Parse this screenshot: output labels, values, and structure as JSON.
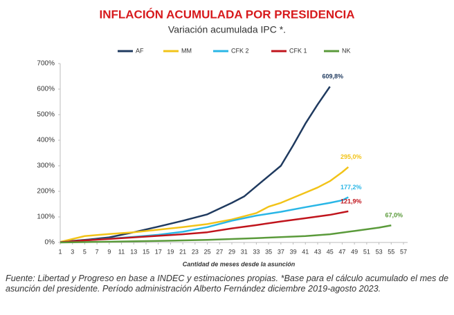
{
  "chart_data": {
    "type": "line",
    "title": "INFLACIÓN ACUMULADA POR PRESIDENCIA",
    "subtitle": "Variación acumulada IPC *.",
    "x_label": "Cantidad de meses desde la asunción",
    "xlim": [
      1,
      57
    ],
    "xticks": [
      1,
      3,
      5,
      7,
      9,
      11,
      13,
      15,
      17,
      19,
      21,
      23,
      25,
      27,
      29,
      31,
      33,
      35,
      37,
      39,
      41,
      43,
      45,
      47,
      49,
      51,
      53,
      55,
      57
    ],
    "ylim": [
      0,
      700
    ],
    "yticks": [
      {
        "value": 0,
        "label": "0%"
      },
      {
        "value": 100,
        "label": "100%"
      },
      {
        "value": 200,
        "label": "200%"
      },
      {
        "value": 300,
        "label": "300%"
      },
      {
        "value": 400,
        "label": "400%"
      },
      {
        "value": 500,
        "label": "500%"
      },
      {
        "value": 600,
        "label": "600%"
      },
      {
        "value": 700,
        "label": "700%"
      }
    ],
    "legend": "top",
    "series": [
      {
        "name": "AF",
        "color": "#1f3a5f",
        "x": [
          1,
          5,
          9,
          13,
          17,
          21,
          25,
          29,
          31,
          33,
          35,
          37,
          39,
          41,
          43,
          45
        ],
        "values": [
          2,
          10,
          20,
          40,
          62,
          85,
          110,
          155,
          180,
          220,
          260,
          300,
          380,
          465,
          540,
          609.8
        ],
        "value_labels": [
          null,
          null,
          null,
          null,
          null,
          null,
          null,
          null,
          null,
          null,
          null,
          null,
          null,
          null,
          null,
          "609,8%"
        ]
      },
      {
        "name": "MM",
        "color": "#f2c318",
        "x": [
          1,
          5,
          9,
          13,
          17,
          21,
          25,
          29,
          33,
          35,
          37,
          39,
          41,
          43,
          45,
          47,
          48
        ],
        "values": [
          2,
          25,
          33,
          40,
          50,
          60,
          72,
          90,
          115,
          140,
          155,
          175,
          195,
          215,
          240,
          275,
          295.0
        ],
        "value_labels": [
          null,
          null,
          null,
          null,
          null,
          null,
          null,
          null,
          null,
          null,
          null,
          null,
          null,
          null,
          null,
          null,
          "295,0%"
        ]
      },
      {
        "name": "CFK 2",
        "color": "#29b6e6",
        "x": [
          1,
          5,
          9,
          13,
          17,
          21,
          25,
          29,
          33,
          37,
          41,
          45,
          47,
          48
        ],
        "values": [
          1,
          8,
          15,
          22,
          30,
          42,
          60,
          85,
          105,
          120,
          138,
          155,
          165,
          177.2
        ],
        "value_labels": [
          null,
          null,
          null,
          null,
          null,
          null,
          null,
          null,
          null,
          null,
          null,
          null,
          null,
          "177,2%"
        ]
      },
      {
        "name": "CFK 1",
        "color": "#c0141c",
        "x": [
          1,
          5,
          9,
          13,
          17,
          21,
          25,
          29,
          33,
          37,
          41,
          45,
          48
        ],
        "values": [
          1,
          8,
          14,
          20,
          26,
          32,
          40,
          55,
          68,
          82,
          95,
          108,
          121.9
        ],
        "value_labels": [
          null,
          null,
          null,
          null,
          null,
          null,
          null,
          null,
          null,
          null,
          null,
          null,
          "121,9%"
        ]
      },
      {
        "name": "NK",
        "color": "#5a9a3a",
        "x": [
          1,
          9,
          17,
          25,
          33,
          41,
          45,
          49,
          53,
          55
        ],
        "values": [
          0,
          3,
          6,
          10,
          17,
          25,
          32,
          45,
          58,
          67.0
        ],
        "value_labels": [
          null,
          null,
          null,
          null,
          null,
          null,
          null,
          null,
          null,
          "67,0%"
        ]
      }
    ]
  },
  "footnote": "Fuente: Libertad y Progreso en base a INDEC y estimaciones propias. *Base para el cálculo acumulado el mes de asunción del presidente. Período administración Alberto Fernández diciembre 2019-agosto 2023."
}
